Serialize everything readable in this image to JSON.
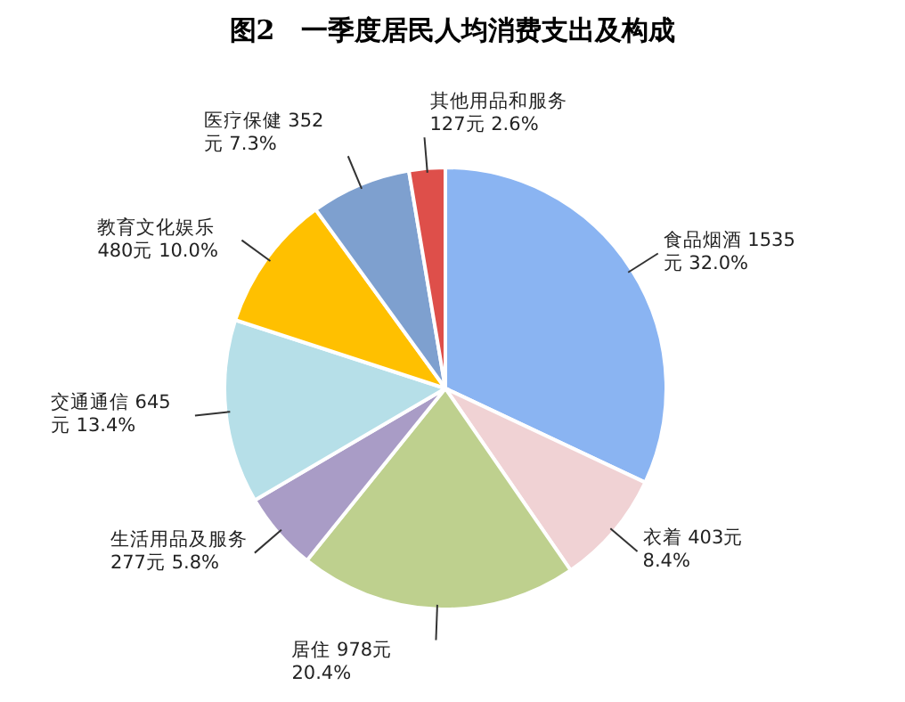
{
  "chart_data": {
    "type": "pie",
    "title": "图2　一季度居民人均消费支出及构成",
    "categories": [
      "食品烟酒",
      "衣着",
      "居住",
      "生活用品及服务",
      "交通通信",
      "教育文化娱乐",
      "医疗保健",
      "其他用品和服务"
    ],
    "values": [
      1535,
      403,
      978,
      277,
      645,
      480,
      352,
      127
    ],
    "value_labels": [
      "1535元 32.0%",
      "403元 8.4%",
      "978元 20.4%",
      "277元 5.8%",
      "645元 13.4%",
      "480元 10.0%",
      "352元 7.3%",
      "127元 2.6%"
    ],
    "colors": [
      "#8ab4f2",
      "#f0d2d4",
      "#bed08e",
      "#a99cc6",
      "#b6dfe8",
      "#ffc000",
      "#7ea0cf",
      "#de4f4a"
    ]
  }
}
